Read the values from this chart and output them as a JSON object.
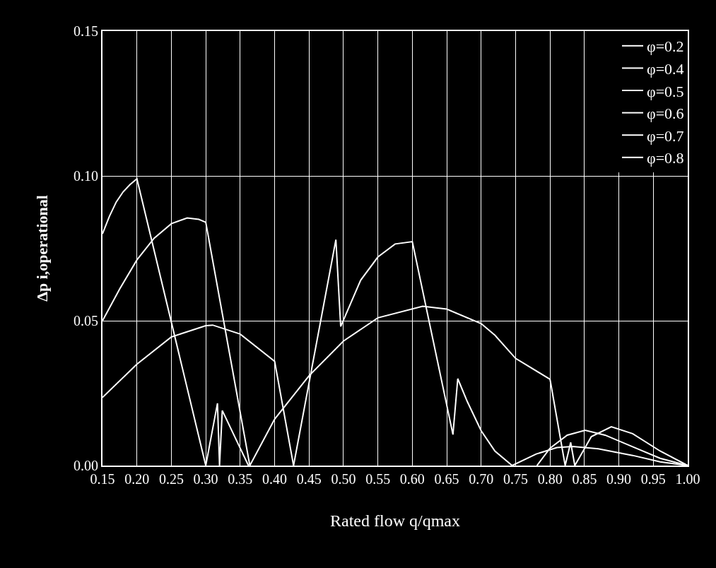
{
  "chart_data": {
    "type": "line",
    "xlabel": "Rated flow q/qmax",
    "ylabel": "Δp i,operational",
    "xlim": [
      0.15,
      1.0
    ],
    "xticks": [
      0.15,
      {
        "value": 0.2,
        "label": "0.20"
      },
      0.25,
      {
        "value": 0.3,
        "label": "0.30"
      },
      0.35,
      {
        "value": 0.4,
        "label": "0.40"
      },
      0.45,
      {
        "value": 0.5,
        "label": "0.50"
      },
      0.55,
      {
        "value": 0.6,
        "label": "0.60"
      },
      0.65,
      {
        "value": 0.7,
        "label": "0.70"
      },
      0.75,
      {
        "value": 0.8,
        "label": "0.80"
      },
      0.85,
      {
        "value": 0.9,
        "label": "0.90"
      },
      0.95,
      {
        "value": 1.0,
        "label": "1.00"
      }
    ],
    "ylim": [
      0,
      0.15
    ],
    "yticks": [
      {
        "value": 0,
        "label": "0.00"
      },
      0.05,
      {
        "value": 0.1,
        "label": "0.10"
      },
      0.15
    ],
    "grid": true,
    "legend": "top right",
    "marker": "none",
    "line_style": "solid",
    "series": [
      {
        "name": "φ=0.2",
        "color": "#ffffff",
        "x": [
          0.15,
          0.16,
          0.17,
          0.18,
          0.19,
          0.2,
          0.3,
          0.317,
          0.32,
          0.324,
          0.362
        ],
        "values": [
          0.08,
          0.086,
          0.091,
          0.0945,
          0.097,
          0.099,
          0,
          0.0215,
          0,
          0.019,
          0
        ]
      },
      {
        "name": "φ=0.4",
        "color": "#ffffff",
        "x": [
          0.15,
          0.175,
          0.2,
          0.225,
          0.25,
          0.273,
          0.29,
          0.3,
          0.364
        ],
        "values": [
          0.05,
          0.061,
          0.071,
          0.0785,
          0.0835,
          0.0855,
          0.085,
          0.084,
          0
        ]
      },
      {
        "name": "φ=0.5",
        "color": "#ffffff",
        "x": [
          0.364,
          0.4,
          0.45,
          0.5,
          0.55,
          0.615,
          0.65,
          0.7,
          0.72,
          0.75,
          0.8,
          0.822,
          0.83,
          0.836,
          0.86,
          0.889,
          0.92,
          0.96,
          1.0
        ],
        "values": [
          0,
          0.016,
          0.031,
          0.043,
          0.051,
          0.055,
          0.054,
          0.049,
          0.045,
          0.037,
          0.0298,
          0,
          0.008,
          0,
          0.01,
          0.0134,
          0.011,
          0.005,
          0
        ]
      },
      {
        "name": "φ=0.6",
        "color": "#ffffff",
        "x": [
          0.15,
          0.2,
          0.25,
          0.3,
          0.31,
          0.35,
          0.4,
          0.4275
        ],
        "values": [
          0.0235,
          0.035,
          0.0444,
          0.0483,
          0.0485,
          0.0454,
          0.036,
          0
        ]
      },
      {
        "name": "φ=0.7",
        "color": "#ffffff",
        "x": [
          0.4275,
          0.489,
          0.496,
          0.525,
          0.55,
          0.575,
          0.6,
          0.659,
          0.666,
          0.68,
          0.7,
          0.72,
          0.745,
          0.78,
          0.81,
          0.833,
          0.87,
          0.92,
          0.96,
          1.0
        ],
        "values": [
          0,
          0.078,
          0.048,
          0.064,
          0.072,
          0.0765,
          0.0773,
          0.0107,
          0.03,
          0.022,
          0.012,
          0.005,
          0,
          0.004,
          0.0062,
          0.0066,
          0.0058,
          0.0035,
          0.0013,
          0
        ]
      },
      {
        "name": "φ=0.8",
        "color": "#ffffff",
        "x": [
          0.781,
          0.8,
          0.825,
          0.851,
          0.88,
          0.92,
          0.96,
          1.0
        ],
        "values": [
          0,
          0.006,
          0.0105,
          0.0122,
          0.0105,
          0.0065,
          0.0025,
          0
        ]
      }
    ]
  }
}
